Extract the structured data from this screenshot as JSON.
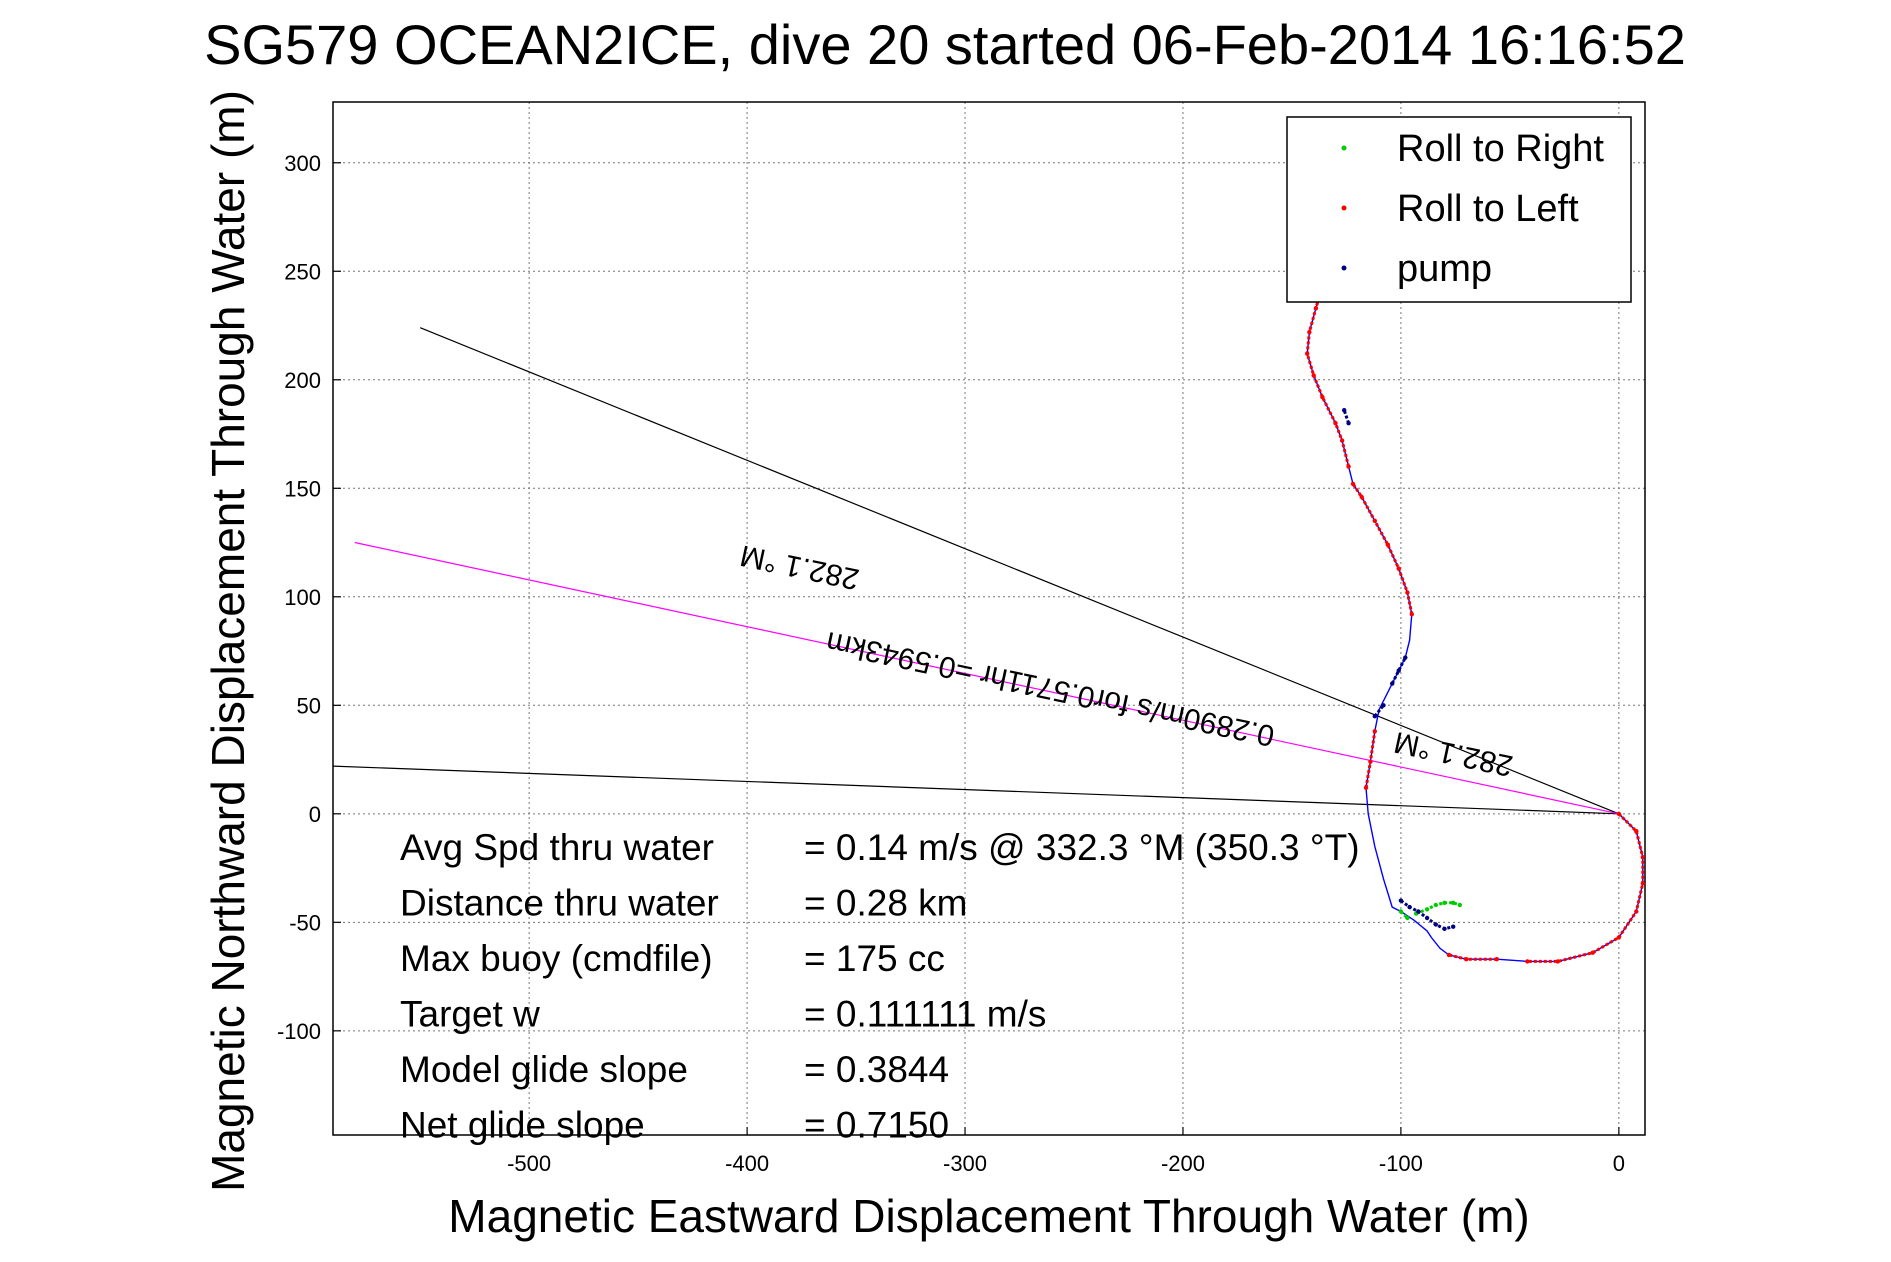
{
  "chart_data": {
    "type": "scatter",
    "title": "SG579 OCEAN2ICE, dive 20 started 06-Feb-2014 16:16:52",
    "xlabel": "Magnetic Eastward Displacement Through Water (m)",
    "ylabel": "Magnetic Northward Displacement Through Water (m)",
    "xlim": [
      -590,
      12
    ],
    "ylim": [
      -148,
      328
    ],
    "xticks": [
      -500,
      -400,
      -300,
      -200,
      -100,
      0
    ],
    "yticks": [
      -100,
      -50,
      0,
      50,
      100,
      150,
      200,
      250,
      300
    ],
    "grid": true,
    "legend_position": "top-right",
    "legend": [
      {
        "label": "Roll to Right",
        "color": "#00cc00"
      },
      {
        "label": "Roll to Left",
        "color": "#ff0000"
      },
      {
        "label": "pump",
        "color": "#000080"
      }
    ],
    "track_color": "#0000ff",
    "track": [
      [
        0,
        0
      ],
      [
        8,
        -8
      ],
      [
        11,
        -20
      ],
      [
        11,
        -32
      ],
      [
        8,
        -45
      ],
      [
        0,
        -57
      ],
      [
        -12,
        -64
      ],
      [
        -28,
        -68
      ],
      [
        -42,
        -68
      ],
      [
        -56,
        -67
      ],
      [
        -70,
        -67
      ],
      [
        -78,
        -65
      ],
      [
        -82,
        -62
      ],
      [
        -86,
        -57
      ],
      [
        -88,
        -54
      ],
      [
        -94,
        -49
      ],
      [
        -100,
        -45
      ],
      [
        -104,
        -43
      ],
      [
        -108,
        -30
      ],
      [
        -112,
        -15
      ],
      [
        -115,
        0
      ],
      [
        -116,
        12
      ],
      [
        -114,
        24
      ],
      [
        -112,
        38
      ],
      [
        -110,
        48
      ],
      [
        -104,
        60
      ],
      [
        -98,
        72
      ],
      [
        -96,
        80
      ],
      [
        -95,
        92
      ],
      [
        -97,
        102
      ],
      [
        -101,
        113
      ],
      [
        -106,
        124
      ],
      [
        -112,
        135
      ],
      [
        -118,
        146
      ],
      [
        -122,
        152
      ],
      [
        -124,
        160
      ],
      [
        -127,
        172
      ],
      [
        -130,
        180
      ],
      [
        -136,
        192
      ],
      [
        -140,
        202
      ],
      [
        -143,
        212
      ],
      [
        -142,
        222
      ],
      [
        -139,
        233
      ],
      [
        -137,
        240
      ]
    ],
    "roll_right_segments": [
      [
        [
          -93,
          -46
        ],
        [
          -88,
          -44
        ],
        [
          -84,
          -42
        ],
        [
          -80,
          -41
        ],
        [
          -76,
          -41
        ],
        [
          -73,
          -42
        ]
      ],
      [
        [
          -100,
          -45
        ],
        [
          -97,
          -48
        ]
      ]
    ],
    "roll_left_segments": [
      [
        [
          0,
          0
        ],
        [
          8,
          -8
        ],
        [
          11,
          -20
        ],
        [
          11,
          -32
        ],
        [
          8,
          -45
        ],
        [
          0,
          -57
        ],
        [
          -12,
          -64
        ],
        [
          -28,
          -68
        ],
        [
          -42,
          -68
        ]
      ],
      [
        [
          -56,
          -67
        ],
        [
          -70,
          -67
        ],
        [
          -78,
          -65
        ]
      ],
      [
        [
          -116,
          12
        ],
        [
          -114,
          24
        ],
        [
          -112,
          38
        ]
      ],
      [
        [
          -95,
          92
        ],
        [
          -97,
          102
        ],
        [
          -101,
          113
        ],
        [
          -106,
          124
        ],
        [
          -112,
          135
        ],
        [
          -118,
          146
        ],
        [
          -122,
          152
        ]
      ],
      [
        [
          -124,
          160
        ],
        [
          -127,
          172
        ],
        [
          -130,
          180
        ],
        [
          -136,
          192
        ],
        [
          -140,
          202
        ],
        [
          -143,
          212
        ],
        [
          -142,
          222
        ],
        [
          -139,
          233
        ],
        [
          -137,
          240
        ]
      ]
    ],
    "pump_segments": [
      [
        [
          -100,
          -40
        ],
        [
          -96,
          -43
        ],
        [
          -92,
          -45
        ],
        [
          -88,
          -48
        ],
        [
          -84,
          -51
        ],
        [
          -80,
          -53
        ],
        [
          -76,
          -52
        ]
      ],
      [
        [
          -104,
          60
        ],
        [
          -101,
          66
        ],
        [
          -98,
          72
        ]
      ],
      [
        [
          -112,
          45
        ],
        [
          -108,
          50
        ]
      ],
      [
        [
          -124,
          180
        ],
        [
          -126,
          186
        ]
      ]
    ],
    "heading_lines": [
      {
        "color": "#000000",
        "points": [
          [
            0,
            0
          ],
          [
            -550,
            224
          ]
        ]
      },
      {
        "color": "#000000",
        "points": [
          [
            0,
            0
          ],
          [
            -590,
            22
          ]
        ]
      },
      {
        "color": "#ff00ff",
        "points": [
          [
            0,
            0
          ],
          [
            -580,
            125
          ]
        ]
      }
    ],
    "annotations": [
      {
        "text": "282.1 °M",
        "x": -375,
        "y": 118,
        "rotation_deg": 192
      },
      {
        "text": "0.2890m/s for0.5711hr =0.5943km",
        "x": -260,
        "y": 62,
        "rotation_deg": 192
      },
      {
        "text": "282.1 °M",
        "x": -75,
        "y": 32,
        "rotation_deg": 192
      }
    ],
    "stats": [
      {
        "label": "Avg Spd thru water",
        "value": "=  0.14 m/s @ 332.3 °M (350.3 °T)"
      },
      {
        "label": "Distance thru water",
        "value": "=  0.28 km"
      },
      {
        "label": "Max buoy (cmdfile)",
        "value": "= 175 cc"
      },
      {
        "label": "Target w",
        "value": "= 0.111111 m/s"
      },
      {
        "label": "Model glide slope",
        "value": "= 0.3844"
      },
      {
        "label": "Net glide slope",
        "value": "= 0.7150"
      }
    ]
  }
}
